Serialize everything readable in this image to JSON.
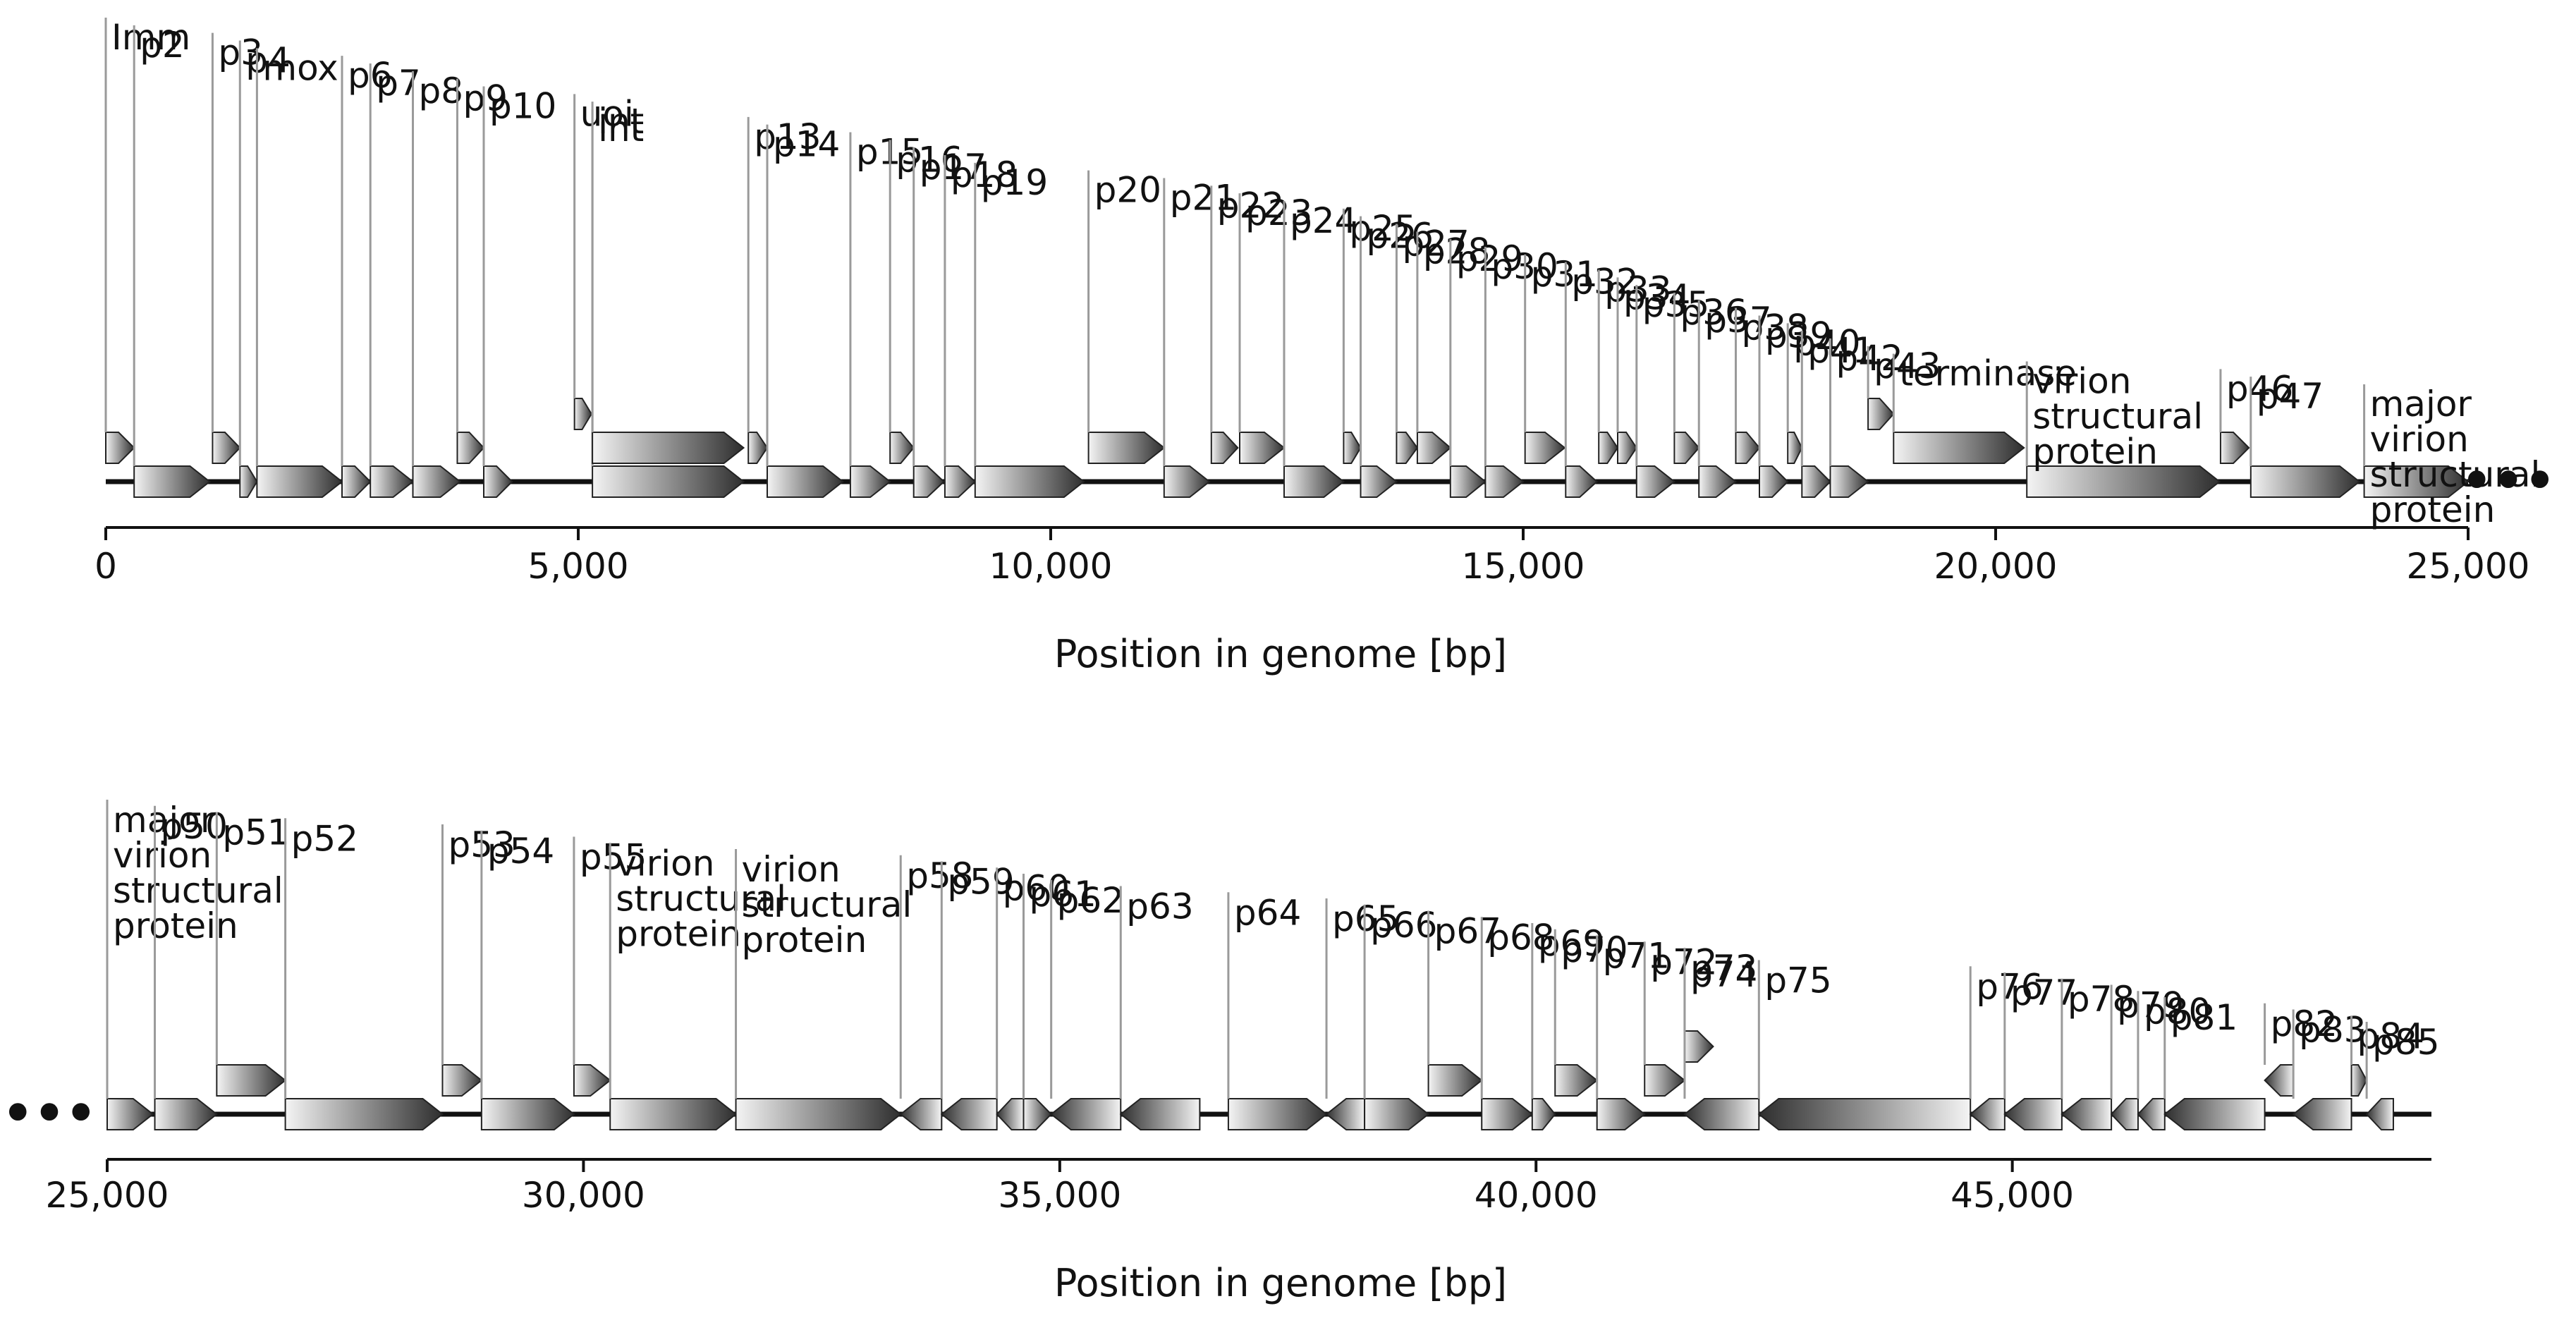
{
  "figure": {
    "continuation_marker": "•••",
    "colors": {
      "gene_dark": "#2e2e2e",
      "gene_light": "#f4f4f4",
      "leader_line": "#9a9a9a",
      "backbone": "#111111",
      "axis": "#111111"
    }
  },
  "panels": [
    {
      "id": "top",
      "axis": {
        "label": "Position in genome [bp]",
        "min": 0,
        "max": 25000,
        "ticks": [
          0,
          5000,
          10000,
          15000,
          20000,
          25000
        ],
        "tick_labels": [
          "0",
          "5,000",
          "10,000",
          "15,000",
          "20,000",
          "25,000"
        ]
      },
      "genes": [
        {
          "start": 0,
          "end": 300,
          "strand": "+",
          "row": "up",
          "label": [
            "Imm"
          ]
        },
        {
          "start": 300,
          "end": 1100,
          "strand": "+",
          "row": "main",
          "label": [
            "p2"
          ]
        },
        {
          "start": 1130,
          "end": 1420,
          "strand": "+",
          "row": "up",
          "label": [
            "p3"
          ]
        },
        {
          "start": 1420,
          "end": 1600,
          "strand": "+",
          "row": "main",
          "label": [
            "p4"
          ]
        },
        {
          "start": 1600,
          "end": 2500,
          "strand": "+",
          "row": "main",
          "label": [
            "mox"
          ]
        },
        {
          "start": 2500,
          "end": 2800,
          "strand": "+",
          "row": "main",
          "label": [
            "p6"
          ]
        },
        {
          "start": 2800,
          "end": 3250,
          "strand": "+",
          "row": "main",
          "label": [
            "p7"
          ]
        },
        {
          "start": 3250,
          "end": 3750,
          "strand": "+",
          "row": "main",
          "label": [
            "p8"
          ]
        },
        {
          "start": 3720,
          "end": 4000,
          "strand": "+",
          "row": "up",
          "label": [
            "p9"
          ]
        },
        {
          "start": 4000,
          "end": 4300,
          "strand": "+",
          "row": "main",
          "label": [
            "p10"
          ]
        },
        {
          "start": 4960,
          "end": 5140,
          "strand": "+",
          "row": "up2",
          "label": [
            "uoi"
          ]
        },
        {
          "start": 5150,
          "end": 6750,
          "strand": "+",
          "row": "main",
          "label": [
            "int"
          ]
        },
        {
          "start": 5150,
          "end": 6750,
          "strand": "+",
          "row": "up",
          "label": [
            "int"
          ]
        },
        {
          "start": 6800,
          "end": 7000,
          "strand": "+",
          "row": "up",
          "label": [
            "p13"
          ]
        },
        {
          "start": 7000,
          "end": 7800,
          "strand": "+",
          "row": "main",
          "label": [
            "p14"
          ]
        },
        {
          "start": 7880,
          "end": 8300,
          "strand": "+",
          "row": "main",
          "label": [
            "p15"
          ]
        },
        {
          "start": 8300,
          "end": 8550,
          "strand": "+",
          "row": "up",
          "label": [
            "p16"
          ]
        },
        {
          "start": 8550,
          "end": 8870,
          "strand": "+",
          "row": "main",
          "label": [
            "p17"
          ]
        },
        {
          "start": 8880,
          "end": 9200,
          "strand": "+",
          "row": "main",
          "label": [
            "p18"
          ]
        },
        {
          "start": 9200,
          "end": 10350,
          "strand": "+",
          "row": "main",
          "label": [
            "p19"
          ]
        },
        {
          "start": 10400,
          "end": 11200,
          "strand": "+",
          "row": "up",
          "label": [
            "p20"
          ]
        },
        {
          "start": 11200,
          "end": 11680,
          "strand": "+",
          "row": "main",
          "label": [
            "p21"
          ]
        },
        {
          "start": 11700,
          "end": 11980,
          "strand": "+",
          "row": "up",
          "label": [
            "p22"
          ]
        },
        {
          "start": 12000,
          "end": 12470,
          "strand": "+",
          "row": "up",
          "label": [
            "p23"
          ]
        },
        {
          "start": 12470,
          "end": 13100,
          "strand": "+",
          "row": "main",
          "label": [
            "p24"
          ]
        },
        {
          "start": 13100,
          "end": 13280,
          "strand": "+",
          "row": "up",
          "label": [
            "p25"
          ]
        },
        {
          "start": 13280,
          "end": 13660,
          "strand": "+",
          "row": "main",
          "label": [
            "p26"
          ]
        },
        {
          "start": 13660,
          "end": 13880,
          "strand": "+",
          "row": "up",
          "label": [
            "p27"
          ]
        },
        {
          "start": 13880,
          "end": 14230,
          "strand": "+",
          "row": "up",
          "label": [
            "p28"
          ]
        },
        {
          "start": 14230,
          "end": 14600,
          "strand": "+",
          "row": "main",
          "label": [
            "p29"
          ]
        },
        {
          "start": 14600,
          "end": 15000,
          "strand": "+",
          "row": "main",
          "label": [
            "p30"
          ]
        },
        {
          "start": 15020,
          "end": 15440,
          "strand": "+",
          "row": "up",
          "label": [
            "p31"
          ]
        },
        {
          "start": 15450,
          "end": 15780,
          "strand": "+",
          "row": "main",
          "label": [
            "p32"
          ]
        },
        {
          "start": 15800,
          "end": 16000,
          "strand": "+",
          "row": "up",
          "label": [
            "p33"
          ]
        },
        {
          "start": 16000,
          "end": 16200,
          "strand": "+",
          "row": "up",
          "label": [
            "p34"
          ]
        },
        {
          "start": 16200,
          "end": 16600,
          "strand": "+",
          "row": "main",
          "label": [
            "p35"
          ]
        },
        {
          "start": 16600,
          "end": 16860,
          "strand": "+",
          "row": "up",
          "label": [
            "p36"
          ]
        },
        {
          "start": 16860,
          "end": 17250,
          "strand": "+",
          "row": "main",
          "label": [
            "p37"
          ]
        },
        {
          "start": 17250,
          "end": 17500,
          "strand": "+",
          "row": "up",
          "label": [
            "p38"
          ]
        },
        {
          "start": 17500,
          "end": 17800,
          "strand": "+",
          "row": "main",
          "label": [
            "p39"
          ]
        },
        {
          "start": 17800,
          "end": 17950,
          "strand": "+",
          "row": "up",
          "label": [
            "p40"
          ]
        },
        {
          "start": 17950,
          "end": 18250,
          "strand": "+",
          "row": "main",
          "label": [
            "p41"
          ]
        },
        {
          "start": 18250,
          "end": 18650,
          "strand": "+",
          "row": "main",
          "label": [
            "p42"
          ]
        },
        {
          "start": 18650,
          "end": 18920,
          "strand": "+",
          "row": "up2",
          "label": [
            "p43"
          ]
        },
        {
          "start": 18920,
          "end": 20300,
          "strand": "+",
          "row": "up",
          "label": [
            "terminase"
          ]
        },
        {
          "start": 20330,
          "end": 22370,
          "strand": "+",
          "row": "main",
          "label": [
            "virion",
            "structural",
            "protein"
          ]
        },
        {
          "start": 22380,
          "end": 22680,
          "strand": "+",
          "row": "up",
          "label": [
            "p46"
          ]
        },
        {
          "start": 22700,
          "end": 23850,
          "strand": "+",
          "row": "main",
          "label": [
            "p47"
          ]
        },
        {
          "start": 23900,
          "end": 25000,
          "strand": "+",
          "row": "main",
          "label": [
            "major",
            "virion",
            "structural",
            "protein"
          ]
        }
      ]
    },
    {
      "id": "bottom",
      "axis": {
        "label": "Position in genome [bp]",
        "min": 25000,
        "max": 49400,
        "ticks": [
          25000,
          30000,
          35000,
          40000,
          45000
        ],
        "tick_labels": [
          "25,000",
          "30,000",
          "35,000",
          "40,000",
          "45,000"
        ]
      },
      "genes": [
        {
          "start": 25000,
          "end": 25480,
          "strand": "+",
          "row": "main",
          "label": [
            "major",
            "virion",
            "structural",
            "protein"
          ]
        },
        {
          "start": 25500,
          "end": 26150,
          "strand": "+",
          "row": "main",
          "label": [
            "p50"
          ]
        },
        {
          "start": 26150,
          "end": 26870,
          "strand": "+",
          "row": "up",
          "label": [
            "p51"
          ]
        },
        {
          "start": 26870,
          "end": 28520,
          "strand": "+",
          "row": "main",
          "label": [
            "p52"
          ]
        },
        {
          "start": 28520,
          "end": 28930,
          "strand": "+",
          "row": "up",
          "label": [
            "p53"
          ]
        },
        {
          "start": 28930,
          "end": 29900,
          "strand": "+",
          "row": "main",
          "label": [
            "p54"
          ]
        },
        {
          "start": 29900,
          "end": 30280,
          "strand": "+",
          "row": "up",
          "label": [
            "p55"
          ]
        },
        {
          "start": 30280,
          "end": 31600,
          "strand": "+",
          "row": "main",
          "label": [
            "virion",
            "structural",
            "protein"
          ]
        },
        {
          "start": 31600,
          "end": 33330,
          "strand": "+",
          "row": "main",
          "label": [
            "virion",
            "structural",
            "protein"
          ]
        },
        {
          "start": 33330,
          "end": 33760,
          "strand": "-",
          "row": "main",
          "label": [
            "p58"
          ]
        },
        {
          "start": 33760,
          "end": 34340,
          "strand": "-",
          "row": "main",
          "label": [
            "p59"
          ]
        },
        {
          "start": 34340,
          "end": 34620,
          "strand": "-",
          "row": "main",
          "label": [
            "p60"
          ]
        },
        {
          "start": 34620,
          "end": 34910,
          "strand": "+",
          "row": "main",
          "label": [
            "p61"
          ]
        },
        {
          "start": 34910,
          "end": 35640,
          "strand": "-",
          "row": "main",
          "label": [
            "p62"
          ]
        },
        {
          "start": 35640,
          "end": 36470,
          "strand": "-",
          "row": "main",
          "label": [
            "p63"
          ]
        },
        {
          "start": 36770,
          "end": 37800,
          "strand": "+",
          "row": "main",
          "label": [
            "p64"
          ]
        },
        {
          "start": 37800,
          "end": 38200,
          "strand": "-",
          "row": "main",
          "label": [
            "p65"
          ]
        },
        {
          "start": 38200,
          "end": 38870,
          "strand": "+",
          "row": "main",
          "label": [
            "p66"
          ]
        },
        {
          "start": 38870,
          "end": 39430,
          "strand": "+",
          "row": "up",
          "label": [
            "p67"
          ]
        },
        {
          "start": 39430,
          "end": 39960,
          "strand": "+",
          "row": "main",
          "label": [
            "p68"
          ]
        },
        {
          "start": 39960,
          "end": 40200,
          "strand": "+",
          "row": "main",
          "label": [
            "p69"
          ]
        },
        {
          "start": 40200,
          "end": 40640,
          "strand": "+",
          "row": "up",
          "label": [
            "p70"
          ]
        },
        {
          "start": 40640,
          "end": 41140,
          "strand": "+",
          "row": "main",
          "label": [
            "p71"
          ]
        },
        {
          "start": 41140,
          "end": 41560,
          "strand": "+",
          "row": "up",
          "label": [
            "p72"
          ]
        },
        {
          "start": 41560,
          "end": 41860,
          "strand": "+",
          "row": "up2",
          "label": [
            "p73"
          ]
        },
        {
          "start": 41560,
          "end": 42340,
          "strand": "-",
          "row": "main",
          "label": [
            "p74"
          ]
        },
        {
          "start": 42340,
          "end": 44560,
          "strand": "-",
          "row": "main",
          "label": [
            "p75"
          ]
        },
        {
          "start": 44560,
          "end": 44920,
          "strand": "-",
          "row": "main",
          "label": [
            "p76"
          ]
        },
        {
          "start": 44920,
          "end": 45520,
          "strand": "-",
          "row": "main",
          "label": [
            "p77"
          ]
        },
        {
          "start": 45520,
          "end": 46040,
          "strand": "-",
          "row": "main",
          "label": [
            "p78"
          ]
        },
        {
          "start": 46040,
          "end": 46320,
          "strand": "-",
          "row": "main",
          "label": [
            "p79"
          ]
        },
        {
          "start": 46320,
          "end": 46600,
          "strand": "-",
          "row": "main",
          "label": [
            "p80"
          ]
        },
        {
          "start": 46600,
          "end": 47650,
          "strand": "-",
          "row": "main",
          "label": [
            "p81"
          ]
        },
        {
          "start": 47650,
          "end": 47950,
          "strand": "-",
          "row": "up",
          "label": [
            "p82"
          ]
        },
        {
          "start": 47950,
          "end": 48560,
          "strand": "-",
          "row": "main",
          "label": [
            "p83"
          ]
        },
        {
          "start": 48560,
          "end": 48720,
          "strand": "+",
          "row": "up",
          "label": [
            "p84"
          ]
        },
        {
          "start": 48720,
          "end": 49000,
          "strand": "-",
          "row": "main",
          "label": [
            "p85"
          ]
        }
      ]
    }
  ]
}
